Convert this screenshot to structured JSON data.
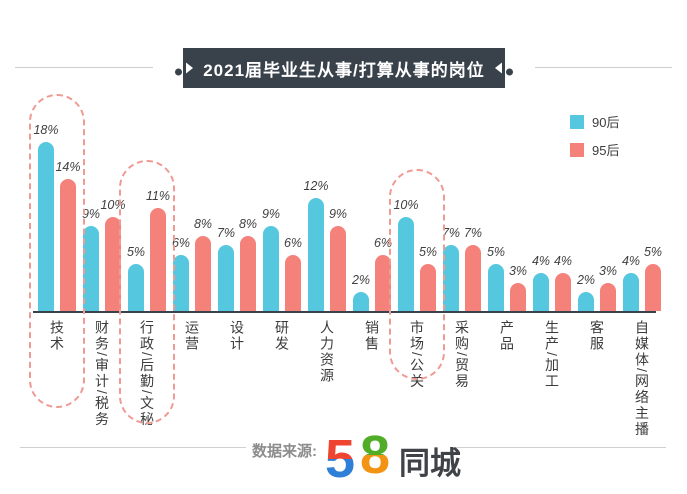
{
  "title": {
    "text": "2021届毕业生从事/打算从事的岗位"
  },
  "legend": {
    "items": [
      {
        "label": "90后",
        "color": "#55C8DF"
      },
      {
        "label": "95后",
        "color": "#F5817B"
      }
    ]
  },
  "chart_data": {
    "type": "bar",
    "title": "2021届毕业生从事/打算从事的岗位",
    "unit": "%",
    "categories": [
      "技术",
      "财务/审计/税务",
      "行政/后勤/文秘",
      "运营",
      "设计",
      "研发",
      "人力资源",
      "销售",
      "市场/公关",
      "采购/贸易",
      "产品",
      "生产/加工",
      "客服",
      "自媒体/网络主播"
    ],
    "series": [
      {
        "name": "90后",
        "color": "#55C8DF",
        "values": [
          18,
          9,
          5,
          6,
          7,
          9,
          12,
          2,
          10,
          7,
          5,
          4,
          2,
          4
        ]
      },
      {
        "name": "95后",
        "color": "#F5817B",
        "values": [
          14,
          10,
          11,
          8,
          8,
          6,
          9,
          6,
          5,
          7,
          3,
          4,
          3,
          5
        ]
      }
    ],
    "value_labels": true,
    "highlighted_categories": [
      "技术",
      "行政/后勤/文秘",
      "市场/公关"
    ],
    "highlight_style": "dashed-oval",
    "highlight_color": "#F09A94",
    "legend_position": "top-right",
    "grid": false,
    "axis_color": "#3A434D",
    "ylim": [
      0,
      20
    ]
  },
  "footer": {
    "source_label": "数据来源:",
    "logo": {
      "five": "5",
      "eight": "8",
      "suffix": "同城",
      "five_top_color": "#EE4430",
      "five_bottom_color": "#2E7FD8",
      "eight_top_color": "#4FAD27",
      "eight_bottom_color": "#F29313",
      "suffix_color": "#3F4347"
    }
  }
}
